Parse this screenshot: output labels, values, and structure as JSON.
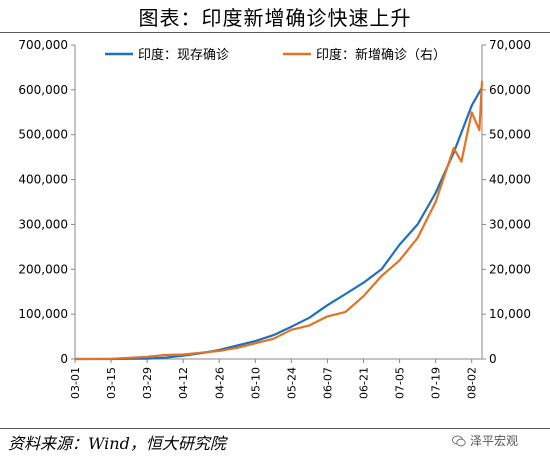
{
  "header": {
    "title": "图表：印度新增确诊快速上升"
  },
  "footer": {
    "source": "资料来源：Wind，恒大研究院",
    "watermark": "泽平宏观"
  },
  "chart_data": {
    "type": "line",
    "legend_position": "top-center",
    "grid": false,
    "categories": [
      "03-01",
      "03-15",
      "03-29",
      "04-12",
      "04-26",
      "05-10",
      "05-24",
      "06-07",
      "06-21",
      "07-05",
      "07-19",
      "08-02"
    ],
    "y_left": {
      "lim": [
        0,
        700000
      ],
      "ticks": [
        "0",
        "100,000",
        "200,000",
        "300,000",
        "400,000",
        "500,000",
        "600,000",
        "700,000"
      ]
    },
    "y_right": {
      "lim": [
        0,
        70000
      ],
      "ticks": [
        "0",
        "10,000",
        "20,000",
        "30,000",
        "40,000",
        "50,000",
        "60,000",
        "70,000"
      ]
    },
    "series": [
      {
        "name": "印度：现存确诊",
        "axis": "left",
        "color": "#1f6fbf",
        "points": [
          [
            "03-01",
            0
          ],
          [
            "03-15",
            100
          ],
          [
            "03-29",
            1000
          ],
          [
            "04-05",
            3000
          ],
          [
            "04-12",
            7500
          ],
          [
            "04-19",
            13000
          ],
          [
            "04-26",
            20000
          ],
          [
            "05-03",
            30000
          ],
          [
            "05-10",
            40000
          ],
          [
            "05-17",
            53000
          ],
          [
            "05-24",
            72000
          ],
          [
            "05-31",
            92000
          ],
          [
            "06-07",
            120000
          ],
          [
            "06-14",
            145000
          ],
          [
            "06-21",
            170000
          ],
          [
            "06-28",
            200000
          ],
          [
            "07-05",
            255000
          ],
          [
            "07-12",
            300000
          ],
          [
            "07-19",
            370000
          ],
          [
            "07-26",
            460000
          ],
          [
            "08-02",
            565000
          ],
          [
            "08-06",
            605000
          ]
        ]
      },
      {
        "name": "印度：新增确诊（右）",
        "axis": "right",
        "color": "#e37222",
        "points": [
          [
            "03-01",
            0
          ],
          [
            "03-15",
            50
          ],
          [
            "03-29",
            500
          ],
          [
            "04-05",
            900
          ],
          [
            "04-12",
            1000
          ],
          [
            "04-19",
            1400
          ],
          [
            "04-26",
            1800
          ],
          [
            "05-03",
            2500
          ],
          [
            "05-10",
            3500
          ],
          [
            "05-17",
            4500
          ],
          [
            "05-24",
            6500
          ],
          [
            "05-31",
            7500
          ],
          [
            "06-07",
            9500
          ],
          [
            "06-14",
            10500
          ],
          [
            "06-21",
            14000
          ],
          [
            "06-28",
            18500
          ],
          [
            "07-05",
            22000
          ],
          [
            "07-12",
            27000
          ],
          [
            "07-19",
            35000
          ],
          [
            "07-26",
            47000
          ],
          [
            "07-29",
            44000
          ],
          [
            "08-02",
            55000
          ],
          [
            "08-05",
            51000
          ],
          [
            "08-06",
            62000
          ]
        ]
      }
    ]
  }
}
